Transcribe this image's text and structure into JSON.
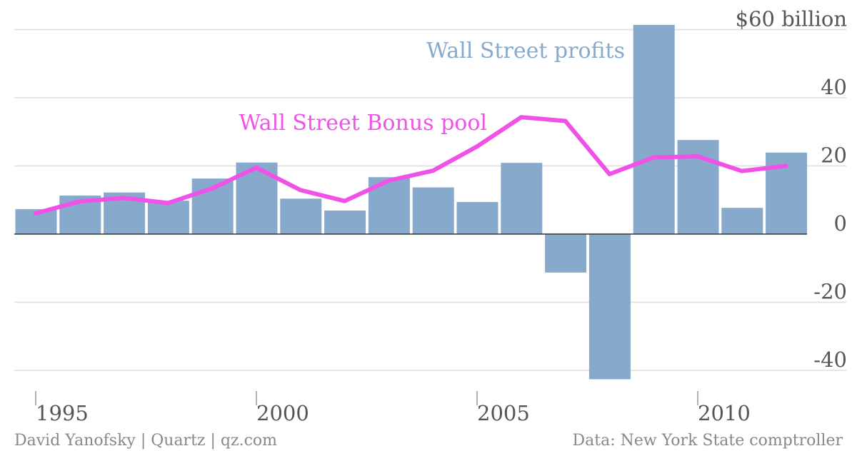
{
  "chart_data": {
    "type": "bar",
    "title": "",
    "xlabel": "",
    "ylabel": "",
    "x": [
      1995,
      1996,
      1997,
      1998,
      1999,
      2000,
      2001,
      2002,
      2003,
      2004,
      2005,
      2006,
      2007,
      2008,
      2009,
      2010,
      2011,
      2012
    ],
    "x_ticks": [
      {
        "value": 1995,
        "label": "1995"
      },
      {
        "value": 2000,
        "label": "2000"
      },
      {
        "value": 2005,
        "label": "2005"
      },
      {
        "value": 2010,
        "label": "2010"
      }
    ],
    "y_ticks": [
      {
        "value": 60,
        "label": "$60 billion"
      },
      {
        "value": 40,
        "label": "40"
      },
      {
        "value": 20,
        "label": "20"
      },
      {
        "value": 0,
        "label": "0"
      },
      {
        "value": -20,
        "label": "-20"
      },
      {
        "value": -40,
        "label": "-40"
      }
    ],
    "ylim": [
      -43,
      60
    ],
    "grid": true,
    "series": [
      {
        "name": "Wall Street profits",
        "type": "bar",
        "color": "#87aacc",
        "values": [
          7.3,
          11.3,
          12.2,
          9.8,
          16.3,
          21.0,
          10.4,
          6.9,
          16.7,
          13.7,
          9.4,
          20.9,
          -11.3,
          -42.6,
          61.4,
          27.6,
          7.7,
          23.9
        ]
      },
      {
        "name": "Wall Street Bonus pool",
        "type": "line",
        "color": "#f052e8",
        "values": [
          6.1,
          9.6,
          10.6,
          9.1,
          13.4,
          19.5,
          12.9,
          9.7,
          15.7,
          18.6,
          25.7,
          34.3,
          33.2,
          17.6,
          22.5,
          22.8,
          18.5,
          20.0
        ]
      }
    ],
    "footer_left": "David Yanofsky | Quartz | qz.com",
    "footer_right": "Data: New York State comptroller"
  }
}
